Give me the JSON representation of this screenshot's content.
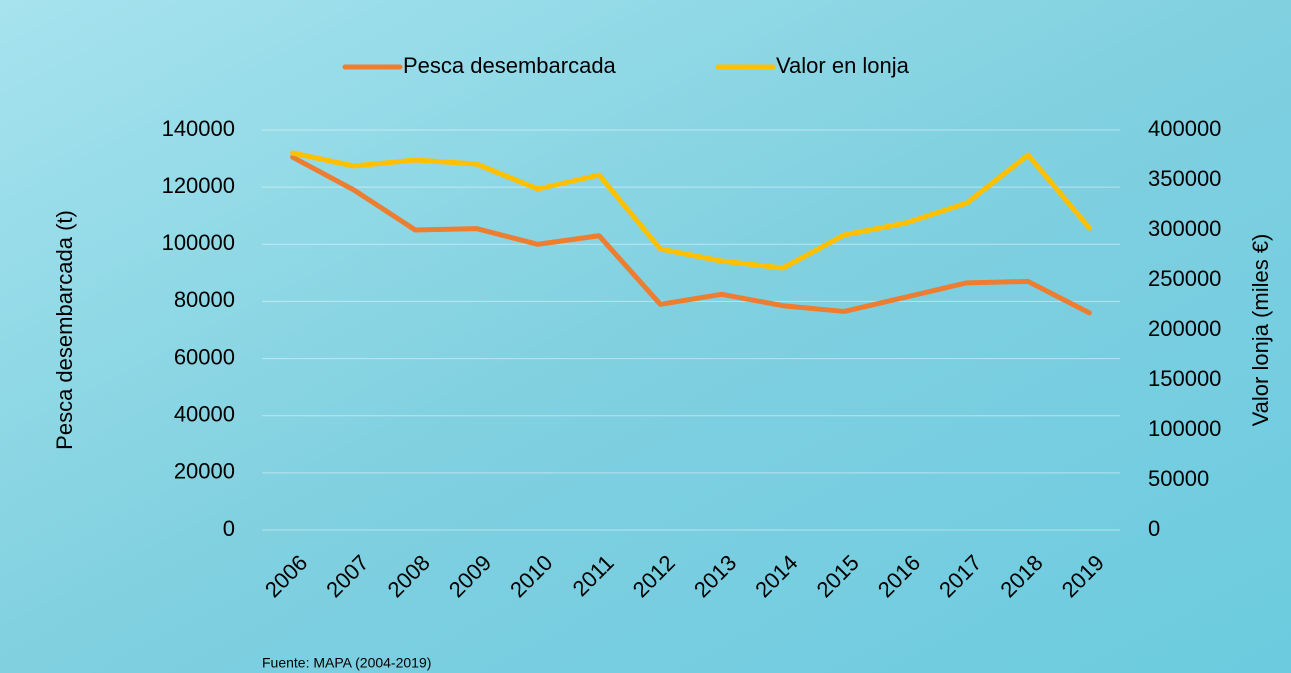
{
  "chart_data": {
    "type": "line",
    "categories": [
      "2006",
      "2007",
      "2008",
      "2009",
      "2010",
      "2011",
      "2012",
      "2013",
      "2014",
      "2015",
      "2016",
      "2017",
      "2018",
      "2019"
    ],
    "series": [
      {
        "name": "Pesca desembarcada",
        "color": "#ed7d31",
        "values": [
          130500,
          119000,
          105000,
          105500,
          100000,
          103000,
          79000,
          82500,
          78500,
          76500,
          81500,
          86500,
          87000,
          76000
        ]
      },
      {
        "name": "Valor en lonja",
        "color": "#ffc000",
        "axis": "y2",
        "values": [
          377000,
          364000,
          370000,
          366000,
          341000,
          355000,
          281000,
          269000,
          262000,
          295000,
          307000,
          327000,
          375000,
          302000
        ]
      }
    ],
    "ylabel": "Pesca desembarcada (t)",
    "y2label": "Valor lonja (miles €)",
    "ylim": [
      0,
      140000
    ],
    "yticks": [
      0,
      20000,
      40000,
      60000,
      80000,
      100000,
      120000,
      140000
    ],
    "y2lim": [
      0,
      400000
    ],
    "y2ticks": [
      0,
      50000,
      100000,
      150000,
      200000,
      250000,
      300000,
      350000,
      400000
    ],
    "grid": true,
    "legend": "top",
    "source": "Fuente: MAPA (2004-2019)"
  }
}
